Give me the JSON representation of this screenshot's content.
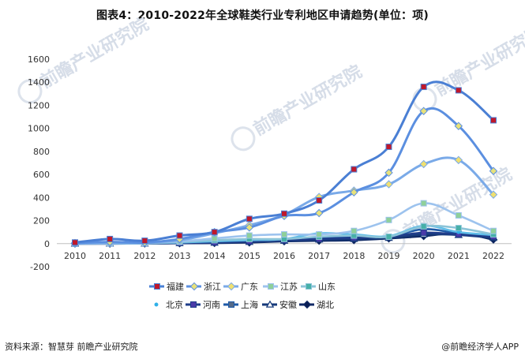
{
  "title": "图表4：2010-2022年全球鞋类行业专利地区申请趋势(单位：项)",
  "watermark": {
    "brand": "前瞻产业研究院"
  },
  "footer": {
    "source": "资料来源：智慧芽 前瞻产业研究院",
    "credit": "@前瞻经济学人APP"
  },
  "chart_data": {
    "type": "line",
    "x": [
      "2010",
      "2011",
      "2012",
      "2013",
      "2014",
      "2015",
      "2016",
      "2017",
      "2018",
      "2019",
      "2020",
      "2021",
      "2022"
    ],
    "ylim": [
      -200,
      1600
    ],
    "yticks": [
      "-200",
      "0",
      "200",
      "400",
      "600",
      "800",
      "1000",
      "1200",
      "1400",
      "1600"
    ],
    "grid": false,
    "legend_position": "bottom",
    "series": [
      {
        "name": "福建",
        "color": "#4a7fd4",
        "marker": "square",
        "marker_color": "#c0182a",
        "values": [
          10,
          40,
          25,
          70,
          100,
          215,
          260,
          375,
          645,
          840,
          1360,
          1330,
          1070
        ]
      },
      {
        "name": "浙江",
        "color": "#5b8fe0",
        "marker": "diamond",
        "marker_color": "#e8e27a",
        "values": [
          5,
          15,
          10,
          40,
          100,
          140,
          240,
          265,
          445,
          615,
          1150,
          1020,
          630
        ]
      },
      {
        "name": "广东",
        "color": "#7aaae8",
        "marker": "diamond",
        "marker_color": "#f0e070",
        "values": [
          3,
          5,
          8,
          30,
          90,
          160,
          250,
          405,
          460,
          515,
          690,
          725,
          425
        ]
      },
      {
        "name": "江苏",
        "color": "#9dc3ee",
        "marker": "square",
        "marker_color": "#8fd09a",
        "values": [
          2,
          3,
          5,
          20,
          45,
          70,
          80,
          80,
          110,
          205,
          350,
          245,
          110
        ]
      },
      {
        "name": "山东",
        "color": "#8cc4d8",
        "marker": "square",
        "marker_color": "#47b0a8",
        "values": [
          1,
          2,
          3,
          15,
          30,
          40,
          40,
          60,
          70,
          60,
          150,
          135,
          80
        ]
      },
      {
        "name": "北京",
        "color": "#5fbde8",
        "marker": "dot",
        "marker_color": "#30b0e8",
        "values": [
          0,
          1,
          2,
          10,
          20,
          30,
          40,
          90,
          80,
          65,
          155,
          100,
          75
        ]
      },
      {
        "name": "河南",
        "color": "#1f3d8a",
        "marker": "square",
        "marker_color": "#4a3aa8",
        "values": [
          0,
          1,
          1,
          5,
          10,
          20,
          30,
          40,
          50,
          60,
          95,
          80,
          60
        ]
      },
      {
        "name": "上海",
        "color": "#1e5aa8",
        "marker": "square",
        "marker_color": "#556a88",
        "values": [
          1,
          2,
          3,
          10,
          15,
          25,
          35,
          50,
          55,
          60,
          125,
          90,
          70
        ]
      },
      {
        "name": "安徽",
        "color": "#163a7a",
        "marker": "triangle",
        "marker_color": "#ffffff",
        "values": [
          0,
          0,
          1,
          5,
          8,
          15,
          25,
          35,
          40,
          50,
          80,
          75,
          50
        ]
      },
      {
        "name": "湖北",
        "color": "#102a66",
        "marker": "diamond",
        "marker_color": "#0a1e55",
        "values": [
          0,
          0,
          1,
          3,
          5,
          10,
          20,
          25,
          30,
          45,
          65,
          90,
          35
        ]
      }
    ]
  }
}
